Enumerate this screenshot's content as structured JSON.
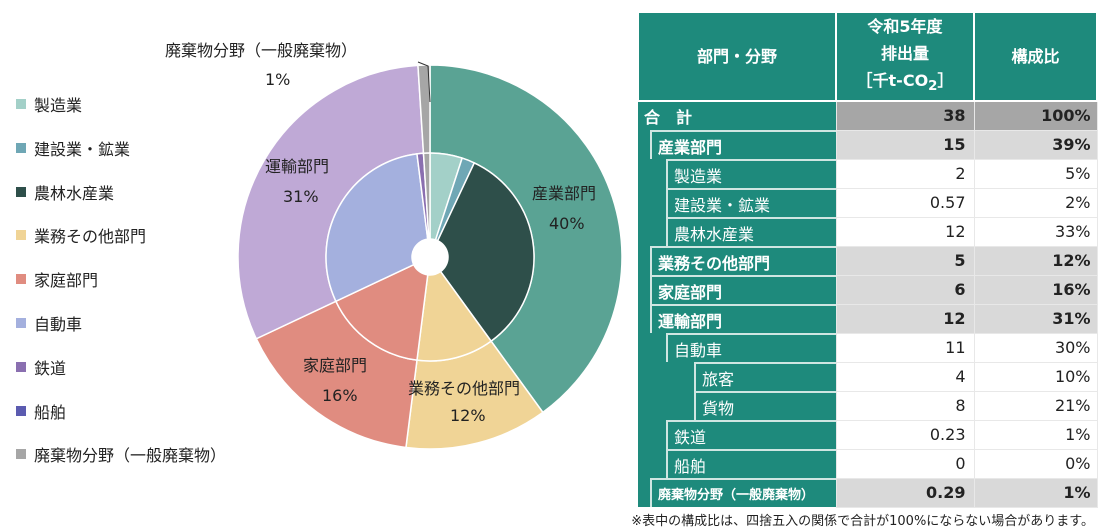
{
  "chart_data": {
    "type": "pie",
    "subtype": "double-donut",
    "outer": {
      "categories": [
        "産業部門",
        "業務その他部門",
        "家庭部門",
        "運輸部門",
        "廃棄物分野（一般廃棄物）"
      ],
      "values": [
        40,
        12,
        16,
        31,
        1
      ],
      "colors": [
        "#5aa394",
        "#f0d496",
        "#e08c80",
        "#bfa9d6",
        "#a6a6a6"
      ]
    },
    "inner": {
      "categories": [
        "製造業",
        "建設業・鉱業",
        "農林水産業",
        "業務その他部門",
        "家庭部門",
        "自動車",
        "鉄道",
        "船舶",
        "廃棄物分野（一般廃棄物）"
      ],
      "values": [
        5,
        2,
        33,
        12,
        16,
        30,
        1,
        0,
        1
      ],
      "colors": [
        "#a3d0c8",
        "#6fa7b5",
        "#2e4f4a",
        "#f0d496",
        "#e08c80",
        "#a4b0de",
        "#8a6fb0",
        "#5b5bb0",
        "#a6a6a6"
      ]
    },
    "legend": [
      {
        "label": "製造業",
        "color": "#a3d0c8"
      },
      {
        "label": "建設業・鉱業",
        "color": "#6fa7b5"
      },
      {
        "label": "農林水産業",
        "color": "#2e4f4a"
      },
      {
        "label": "業務その他部門",
        "color": "#f0d496"
      },
      {
        "label": "家庭部門",
        "color": "#e08c80"
      },
      {
        "label": "自動車",
        "color": "#a4b0de"
      },
      {
        "label": "鉄道",
        "color": "#8a6fb0"
      },
      {
        "label": "船舶",
        "color": "#5b5bb0"
      },
      {
        "label": "廃棄物分野（一般廃棄物）",
        "color": "#a6a6a6"
      }
    ],
    "legend_position": "left",
    "data_labels": [
      {
        "name": "廃棄物分野（一般廃棄物）",
        "pct": "1%"
      },
      {
        "name": "産業部門",
        "pct": "40%"
      },
      {
        "name": "運輸部門",
        "pct": "31%"
      },
      {
        "name": "家庭部門",
        "pct": "16%"
      },
      {
        "name": "業務その他部門",
        "pct": "12%"
      }
    ]
  },
  "table": {
    "headers": [
      "部門・分野",
      "令和5年度",
      "排出量",
      "［千t-CO",
      "2",
      "］",
      "構成比"
    ],
    "rows": [
      {
        "label": "合　計",
        "value": "38",
        "pct": "100%",
        "type": "total",
        "level": 0
      },
      {
        "label": "産業部門",
        "value": "15",
        "pct": "39%",
        "type": "sec",
        "level": 1
      },
      {
        "label": "製造業",
        "value": "2",
        "pct": "5%",
        "type": "item",
        "level": 2
      },
      {
        "label": "建設業・鉱業",
        "value": "0.57",
        "pct": "2%",
        "type": "item",
        "level": 2
      },
      {
        "label": "農林水産業",
        "value": "12",
        "pct": "33%",
        "type": "item",
        "level": 2
      },
      {
        "label": "業務その他部門",
        "value": "5",
        "pct": "12%",
        "type": "sec",
        "level": 1
      },
      {
        "label": "家庭部門",
        "value": "6",
        "pct": "16%",
        "type": "sec",
        "level": 1
      },
      {
        "label": "運輸部門",
        "value": "12",
        "pct": "31%",
        "type": "sec",
        "level": 1
      },
      {
        "label": "自動車",
        "value": "11",
        "pct": "30%",
        "type": "item",
        "level": 2
      },
      {
        "label": "旅客",
        "value": "4",
        "pct": "10%",
        "type": "item",
        "level": 3
      },
      {
        "label": "貨物",
        "value": "8",
        "pct": "21%",
        "type": "item",
        "level": 3
      },
      {
        "label": "鉄道",
        "value": "0.23",
        "pct": "1%",
        "type": "item",
        "level": 2
      },
      {
        "label": "船舶",
        "value": "0",
        "pct": "0%",
        "type": "item",
        "level": 2
      },
      {
        "label": "廃棄物分野（一般廃棄物）",
        "value": "0.29",
        "pct": "1%",
        "type": "sec small",
        "level": 1
      }
    ]
  },
  "footnote": "※表中の構成比は、四捨五入の関係で合計が100%にならない場合があります。"
}
